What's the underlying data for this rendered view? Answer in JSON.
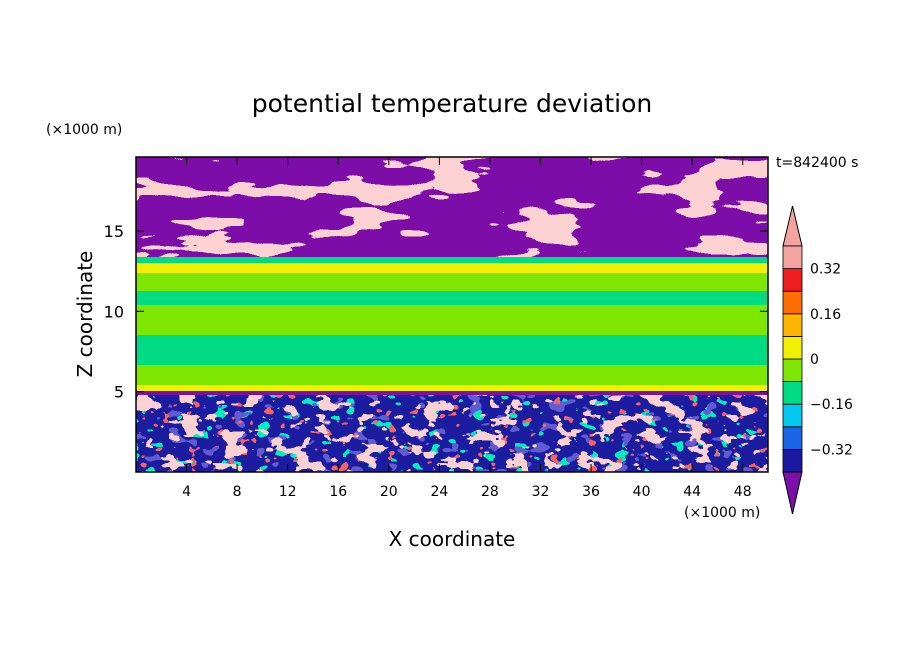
{
  "chart_data": {
    "type": "heatmap",
    "title": "potential temperature deviation",
    "time_label": "t=842400 s",
    "xlabel": "X coordinate",
    "ylabel": "Z coordinate",
    "x_unit": "(×1000 m)",
    "y_unit": "(×1000 m)",
    "xlim": [
      0,
      50
    ],
    "ylim": [
      0,
      19.6
    ],
    "x_ticks": [
      4,
      8,
      12,
      16,
      20,
      24,
      28,
      32,
      36,
      40,
      44,
      48
    ],
    "y_ticks": [
      5,
      10,
      15
    ],
    "grid": false,
    "colorbar": {
      "placement": "right",
      "tick_labels": [
        "0.32",
        "0.16",
        "0",
        "-0.16",
        "-0.32"
      ],
      "tick_values": [
        0.32,
        0.16,
        0,
        -0.16,
        -0.32
      ],
      "levels": [
        -0.4,
        -0.32,
        -0.24,
        -0.16,
        -0.08,
        0,
        0.08,
        0.16,
        0.24,
        0.32,
        0.4
      ],
      "colors": [
        "#7b0fa8",
        "#1a1aa0",
        "#1a64e6",
        "#00c8f0",
        "#00dc82",
        "#7ee600",
        "#f0f000",
        "#ffb400",
        "#ff6e00",
        "#f01e1e",
        "#f4a3a3"
      ],
      "extend": "both"
    },
    "layers": [
      {
        "z_range": [
          17.5,
          19.6
        ],
        "dominant": "< -0.4 and > 0.4 (mixed)"
      },
      {
        "z_range": [
          13.5,
          17.5
        ],
        "dominant": "> 0.4 and < -0.4 (mixed)"
      },
      {
        "z_range": [
          5.5,
          13.5
        ],
        "dominant": "-0.08 to 0.16"
      },
      {
        "z_range": [
          0,
          5
        ],
        "dominant": "all levels (turbulent)"
      }
    ]
  }
}
